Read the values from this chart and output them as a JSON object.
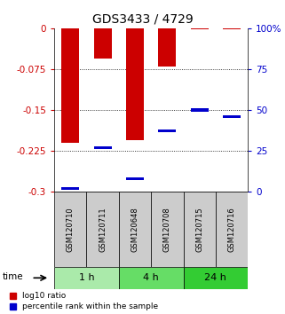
{
  "title": "GDS3433 / 4729",
  "samples": [
    "GSM120710",
    "GSM120711",
    "GSM120648",
    "GSM120708",
    "GSM120715",
    "GSM120716"
  ],
  "groups": [
    {
      "label": "1 h",
      "indices": [
        0,
        1
      ],
      "color": "#aaeaaa"
    },
    {
      "label": "4 h",
      "indices": [
        2,
        3
      ],
      "color": "#66dd66"
    },
    {
      "label": "24 h",
      "indices": [
        4,
        5
      ],
      "color": "#33cc33"
    }
  ],
  "log10_ratio": [
    -0.21,
    -0.055,
    -0.205,
    -0.07,
    -0.002,
    -0.002
  ],
  "percentile_rank": [
    0.02,
    0.27,
    0.08,
    0.37,
    0.5,
    0.46
  ],
  "ylim": [
    -0.3,
    0.0
  ],
  "yticks": [
    0,
    -0.075,
    -0.15,
    -0.225,
    -0.3
  ],
  "right_yticks": [
    0,
    25,
    50,
    75,
    100
  ],
  "bar_color": "#cc0000",
  "percentile_color": "#0000cc",
  "bar_width": 0.55,
  "left_tick_color": "#cc0000",
  "right_tick_color": "#0000cc"
}
